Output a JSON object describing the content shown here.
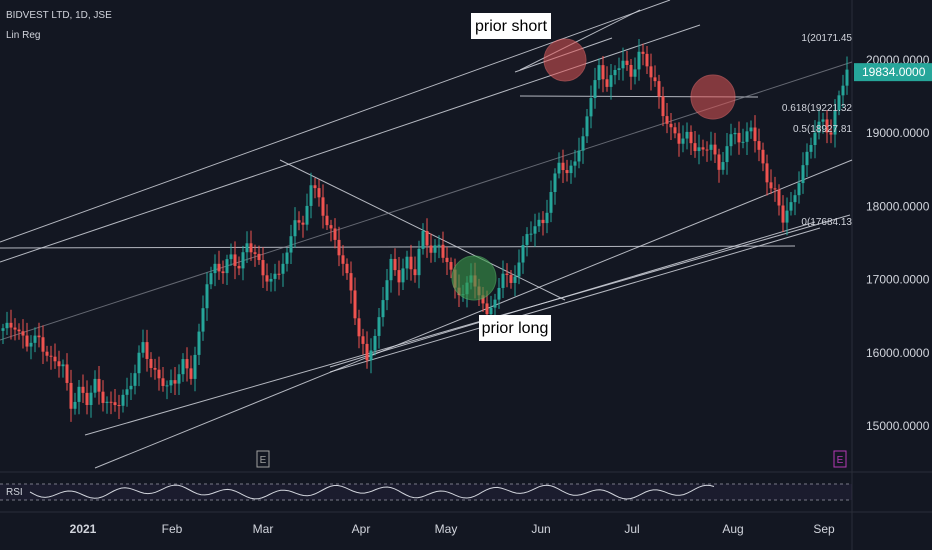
{
  "header": {
    "symbol_line": "BIDVEST LTD, 1D, JSE",
    "indicator": "Lin Reg",
    "rsi_label": "RSI"
  },
  "annotations": {
    "prior_short": "prior short",
    "prior_long": "prior long"
  },
  "markers": [
    "E",
    "E"
  ],
  "colors": {
    "background": "#131722",
    "up": "#26a69a",
    "down": "#ef5350",
    "lines": "#d1d4dc",
    "price_badge": "#26a69a",
    "short_circle": "#e05555",
    "long_circle": "#3a9a4a"
  },
  "chart_data": {
    "type": "candlestick",
    "x_ticks": [
      "2021",
      "Feb",
      "Mar",
      "Apr",
      "May",
      "Jun",
      "Jul",
      "Aug",
      "Sep"
    ],
    "y_ticks": [
      "20000.0000",
      "19000.0000",
      "18000.0000",
      "17000.0000",
      "16000.0000",
      "15000.0000"
    ],
    "ylim": [
      14400,
      20600
    ],
    "last_price": "19834.0000",
    "fib_levels": [
      {
        "label": "1(20171.45",
        "value": 20171.45
      },
      {
        "label": "0.618(19221.32",
        "value": 19221.32
      },
      {
        "label": "0.5(18927.81",
        "value": 18927.81
      },
      {
        "label": "0(17684.13",
        "value": 17684.13
      }
    ],
    "close_path": [
      [
        0,
        16300
      ],
      [
        3,
        16400
      ],
      [
        6,
        16100
      ],
      [
        9,
        16200
      ],
      [
        12,
        15900
      ],
      [
        15,
        15800
      ],
      [
        17,
        15300
      ],
      [
        19,
        15500
      ],
      [
        21,
        15300
      ],
      [
        23,
        15600
      ],
      [
        25,
        15400
      ],
      [
        27,
        15250
      ],
      [
        29,
        15300
      ],
      [
        31,
        15500
      ],
      [
        33,
        15750
      ],
      [
        35,
        16100
      ],
      [
        37,
        15800
      ],
      [
        39,
        15700
      ],
      [
        41,
        15500
      ],
      [
        43,
        15600
      ],
      [
        45,
        15900
      ],
      [
        47,
        15700
      ],
      [
        49,
        16200
      ],
      [
        51,
        17000
      ],
      [
        53,
        17200
      ],
      [
        55,
        17100
      ],
      [
        57,
        17300
      ],
      [
        59,
        17200
      ],
      [
        61,
        17500
      ],
      [
        63,
        17300
      ],
      [
        65,
        17100
      ],
      [
        67,
        17000
      ],
      [
        69,
        17100
      ],
      [
        71,
        17300
      ],
      [
        73,
        17900
      ],
      [
        75,
        17700
      ],
      [
        77,
        18300
      ],
      [
        79,
        18100
      ],
      [
        81,
        17800
      ],
      [
        83,
        17500
      ],
      [
        85,
        17200
      ],
      [
        87,
        16900
      ],
      [
        89,
        16200
      ],
      [
        91,
        15900
      ],
      [
        93,
        16200
      ],
      [
        95,
        16800
      ],
      [
        97,
        17200
      ],
      [
        99,
        17000
      ],
      [
        101,
        17300
      ],
      [
        103,
        17100
      ],
      [
        105,
        17600
      ],
      [
        107,
        17400
      ],
      [
        109,
        17500
      ],
      [
        111,
        17200
      ],
      [
        113,
        16900
      ],
      [
        115,
        16800
      ],
      [
        117,
        17100
      ],
      [
        119,
        16700
      ],
      [
        121,
        16600
      ],
      [
        123,
        16700
      ],
      [
        125,
        17100
      ],
      [
        127,
        16900
      ],
      [
        129,
        17300
      ],
      [
        131,
        17600
      ],
      [
        133,
        17700
      ],
      [
        135,
        17800
      ],
      [
        137,
        18200
      ],
      [
        139,
        18600
      ],
      [
        141,
        18400
      ],
      [
        143,
        18700
      ],
      [
        145,
        18900
      ],
      [
        147,
        19500
      ],
      [
        149,
        19900
      ],
      [
        151,
        19700
      ],
      [
        153,
        19800
      ],
      [
        155,
        20000
      ],
      [
        157,
        19800
      ],
      [
        159,
        20100
      ],
      [
        161,
        19900
      ],
      [
        163,
        19700
      ],
      [
        165,
        19300
      ],
      [
        167,
        19000
      ],
      [
        169,
        18900
      ],
      [
        171,
        19000
      ],
      [
        173,
        18800
      ],
      [
        175,
        18700
      ],
      [
        177,
        18900
      ],
      [
        179,
        18500
      ],
      [
        181,
        18800
      ],
      [
        183,
        19000
      ],
      [
        185,
        18900
      ],
      [
        187,
        19100
      ],
      [
        189,
        18700
      ],
      [
        191,
        18400
      ],
      [
        193,
        18200
      ],
      [
        195,
        17800
      ],
      [
        197,
        18000
      ],
      [
        199,
        18400
      ],
      [
        201,
        18700
      ],
      [
        203,
        19000
      ],
      [
        205,
        19200
      ],
      [
        207,
        19000
      ],
      [
        209,
        19500
      ],
      [
        211,
        19834
      ]
    ]
  }
}
